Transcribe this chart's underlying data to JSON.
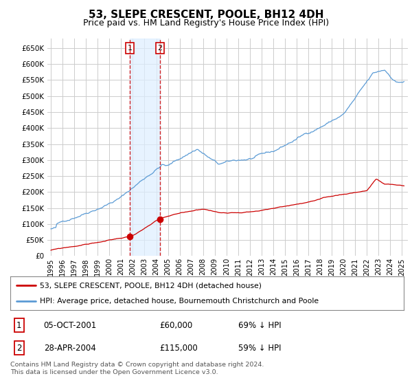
{
  "title": "53, SLEPE CRESCENT, POOLE, BH12 4DH",
  "subtitle": "Price paid vs. HM Land Registry's House Price Index (HPI)",
  "title_fontsize": 11,
  "subtitle_fontsize": 9,
  "legend_line1": "53, SLEPE CRESCENT, POOLE, BH12 4DH (detached house)",
  "legend_line2": "HPI: Average price, detached house, Bournemouth Christchurch and Poole",
  "trans_date_nums": [
    2001.75,
    2004.33
  ],
  "trans_prices": [
    60000,
    115000
  ],
  "trans_labels": [
    "1",
    "2"
  ],
  "vline_color": "#cc0000",
  "shade_color": "#ddeeff",
  "table_rows": [
    {
      "num": "1",
      "date": "05-OCT-2001",
      "price": "£60,000",
      "hpi": "69% ↓ HPI"
    },
    {
      "num": "2",
      "date": "28-APR-2004",
      "price": "£115,000",
      "hpi": "59% ↓ HPI"
    }
  ],
  "footnote": "Contains HM Land Registry data © Crown copyright and database right 2024.\nThis data is licensed under the Open Government Licence v3.0.",
  "hpi_color": "#5b9bd5",
  "price_color": "#cc0000",
  "ylim": [
    0,
    680000
  ],
  "yticks": [
    0,
    50000,
    100000,
    150000,
    200000,
    250000,
    300000,
    350000,
    400000,
    450000,
    500000,
    550000,
    600000,
    650000
  ],
  "xmin": 1994.7,
  "xmax": 2025.5,
  "background_color": "#ffffff",
  "grid_color": "#cccccc"
}
